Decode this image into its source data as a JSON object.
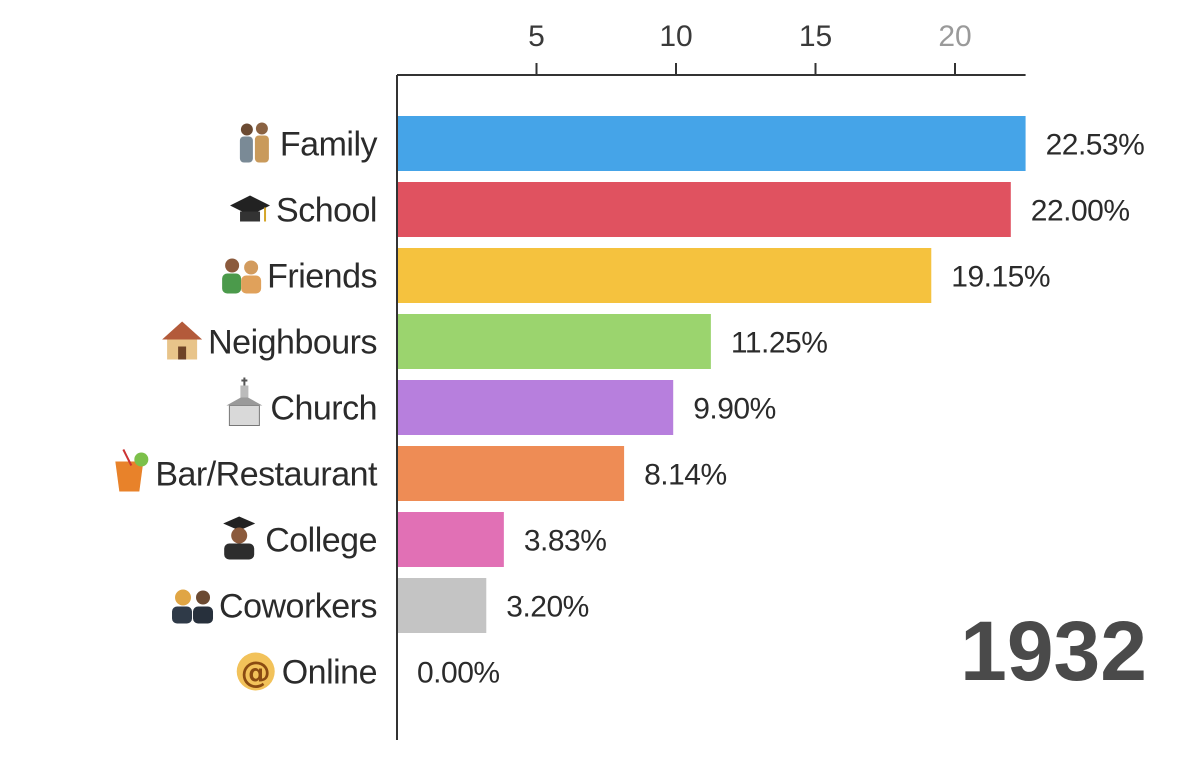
{
  "chart_data": {
    "type": "bar",
    "orientation": "horizontal",
    "categories": [
      "Family",
      "School",
      "Friends",
      "Neighbours",
      "Church",
      "Bar/Restaurant",
      "College",
      "Coworkers",
      "Online"
    ],
    "values": [
      22.53,
      22.0,
      19.15,
      11.25,
      9.9,
      8.14,
      3.83,
      3.2,
      0.0
    ],
    "value_labels": [
      "22.53%",
      "22.00%",
      "19.15%",
      "11.25%",
      "9.90%",
      "8.14%",
      "3.83%",
      "3.20%",
      "0.00%"
    ],
    "colors": [
      "#45a4e8",
      "#e05260",
      "#f5c23e",
      "#9bd46e",
      "#b77fdd",
      "#ee8c55",
      "#e170b5",
      "#c4c4c4",
      "#c4c4c4"
    ],
    "icons": [
      "family-icon",
      "graduation-cap-icon",
      "friends-icon",
      "house-icon",
      "church-icon",
      "cocktail-icon",
      "graduate-icon",
      "coworkers-icon",
      "at-sign-icon"
    ],
    "xticks": [
      5,
      10,
      15,
      20
    ],
    "xlim": [
      0,
      22.53
    ],
    "axis_position": "top",
    "grid": false,
    "year": "1932"
  }
}
